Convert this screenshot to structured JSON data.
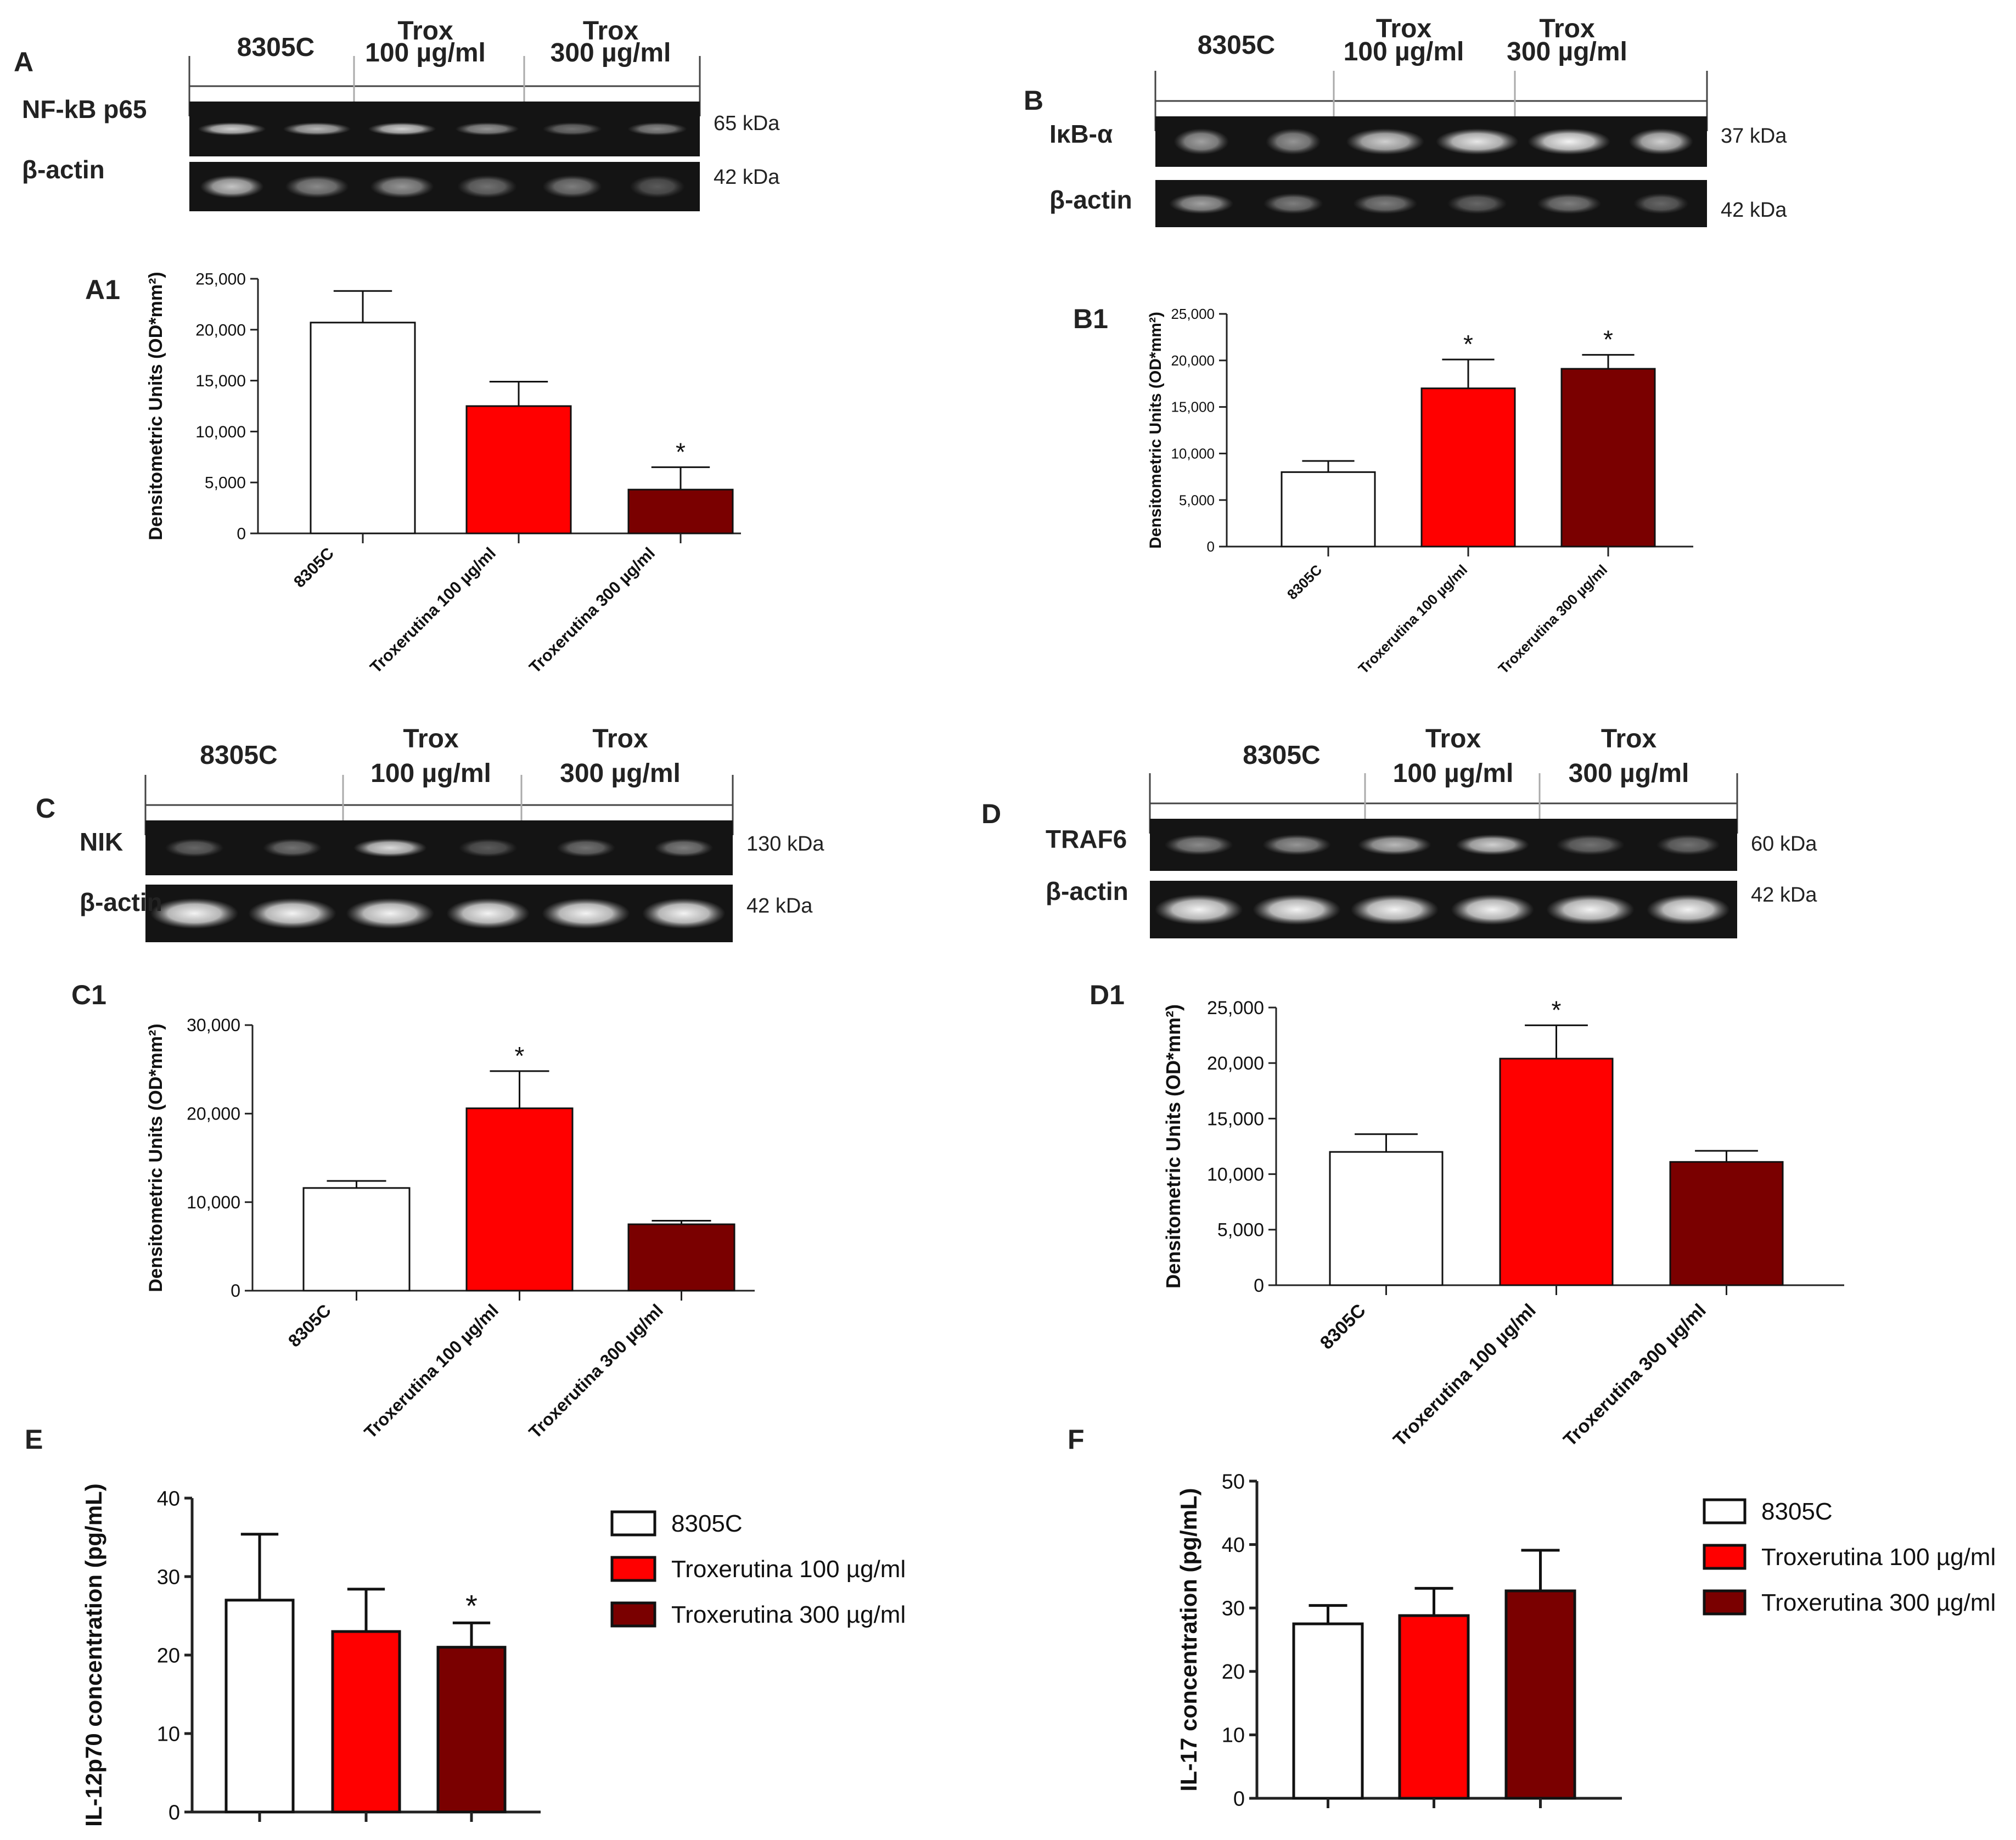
{
  "colors": {
    "control": "#ffffff",
    "trox100": "#ff0000",
    "trox300": "#7a0000",
    "blot_bg": "#141414",
    "band": "#f0f0f0",
    "axis": "#222222"
  },
  "blots": [
    {
      "panel": "A",
      "groups": [
        {
          "lines": [
            "8305C"
          ]
        },
        {
          "lines": [
            "Trox",
            "100 µg/ml"
          ]
        },
        {
          "lines": [
            "Trox",
            "300 µg/ml"
          ]
        }
      ],
      "rows": [
        {
          "label": "NF-kB p65",
          "kda": "65 kDa"
        },
        {
          "label": "β-actin",
          "kda": "42 kDa"
        }
      ]
    },
    {
      "panel": "B",
      "groups": [
        {
          "lines": [
            "8305C"
          ]
        },
        {
          "lines": [
            "Trox",
            "100 µg/ml"
          ]
        },
        {
          "lines": [
            "Trox",
            "300 µg/ml"
          ]
        }
      ],
      "rows": [
        {
          "label": "IκB-α",
          "kda": "37 kDa"
        },
        {
          "label": "β-actin",
          "kda": "42 kDa"
        }
      ]
    },
    {
      "panel": "C",
      "groups": [
        {
          "lines": [
            "8305C"
          ]
        },
        {
          "lines": [
            "Trox",
            "100 µg/ml"
          ]
        },
        {
          "lines": [
            "Trox",
            "300 µg/ml"
          ]
        }
      ],
      "rows": [
        {
          "label": "NIK",
          "kda": "130 kDa"
        },
        {
          "label": "β-actin",
          "kda": "42 kDa"
        }
      ]
    },
    {
      "panel": "D",
      "groups": [
        {
          "lines": [
            "8305C"
          ]
        },
        {
          "lines": [
            "Trox",
            "100 µg/ml"
          ]
        },
        {
          "lines": [
            "Trox",
            "300 µg/ml"
          ]
        }
      ],
      "rows": [
        {
          "label": "TRAF6",
          "kda": "60 kDa"
        },
        {
          "label": "β-actin",
          "kda": "42 kDa"
        }
      ]
    }
  ],
  "chart_data": [
    {
      "panel": "A1",
      "type": "bar",
      "categories": [
        "8305C",
        "Troxerutina 100 µg/ml",
        "Troxerutina 300 µg/ml"
      ],
      "values": [
        20700,
        12500,
        4300
      ],
      "errors": [
        3100,
        2400,
        2200
      ],
      "significance": [
        "",
        "",
        "*"
      ],
      "ylabel": "Densitometric Units (OD*mm²)",
      "ylim": [
        0,
        25000
      ],
      "yticks": [
        "0",
        "5,000",
        "10,000",
        "15,000",
        "20,000",
        "25,000"
      ]
    },
    {
      "panel": "B1",
      "type": "bar",
      "categories": [
        "8305C",
        "Troxerutina 100 µg/ml",
        "Troxerutina 300 µg/ml"
      ],
      "values": [
        8000,
        17000,
        19100
      ],
      "errors": [
        1200,
        3100,
        1500
      ],
      "significance": [
        "",
        "*",
        "*"
      ],
      "ylabel": "Densitometric Units (OD*mm²)",
      "ylim": [
        0,
        25000
      ],
      "yticks": [
        "0",
        "5,000",
        "10,000",
        "15,000",
        "20,000",
        "25,000"
      ]
    },
    {
      "panel": "C1",
      "type": "bar",
      "categories": [
        "8305C",
        "Troxerutina 100 µg/ml",
        "Troxerutina 300 µg/ml"
      ],
      "values": [
        11600,
        20600,
        7500
      ],
      "errors": [
        800,
        4200,
        400
      ],
      "significance": [
        "",
        "*",
        ""
      ],
      "ylabel": "Densitometric Units (OD*mm²)",
      "ylim": [
        0,
        30000
      ],
      "yticks": [
        "0",
        "10,000",
        "20,000",
        "30,000"
      ]
    },
    {
      "panel": "D1",
      "type": "bar",
      "categories": [
        "8305C",
        "Troxerutina 100 µg/ml",
        "Troxerutina 300 µg/ml"
      ],
      "values": [
        12000,
        20400,
        11100
      ],
      "errors": [
        1600,
        3000,
        1000
      ],
      "significance": [
        "",
        "*",
        ""
      ],
      "ylabel": "Densitometric Units (OD*mm²)",
      "ylim": [
        0,
        25000
      ],
      "yticks": [
        "0",
        "5,000",
        "10,000",
        "15,000",
        "20,000",
        "25,000"
      ]
    },
    {
      "panel": "E",
      "type": "bar",
      "categories": [
        "8305C",
        "Troxerutina 100 µg/ml",
        "Troxerutina 300 µg/ml"
      ],
      "values": [
        27,
        23,
        21
      ],
      "errors": [
        8.4,
        5.4,
        3.1
      ],
      "significance": [
        "",
        "",
        "*"
      ],
      "ylabel": "IL-12p70 concentration (pg/mL)",
      "ylim": [
        0,
        40
      ],
      "yticks": [
        "0",
        "10",
        "20",
        "30",
        "40"
      ],
      "legend": [
        "8305C",
        "Troxerutina 100 µg/ml",
        "Troxerutina 300 µg/ml"
      ],
      "legend_position": "right"
    },
    {
      "panel": "F",
      "type": "bar",
      "categories": [
        "8305C",
        "Troxerutina 100 µg/ml",
        "Troxerutina 300 µg/ml"
      ],
      "values": [
        27.5,
        28.8,
        32.7
      ],
      "errors": [
        2.9,
        4.3,
        6.4
      ],
      "significance": [
        "",
        "",
        ""
      ],
      "ylabel": "IL-17 concentration (pg/mL)",
      "ylim": [
        0,
        50
      ],
      "yticks": [
        "0",
        "10",
        "20",
        "30",
        "40",
        "50"
      ],
      "legend": [
        "8305C",
        "Troxerutina 100 µg/ml",
        "Troxerutina 300 µg/ml"
      ],
      "legend_position": "right"
    }
  ]
}
